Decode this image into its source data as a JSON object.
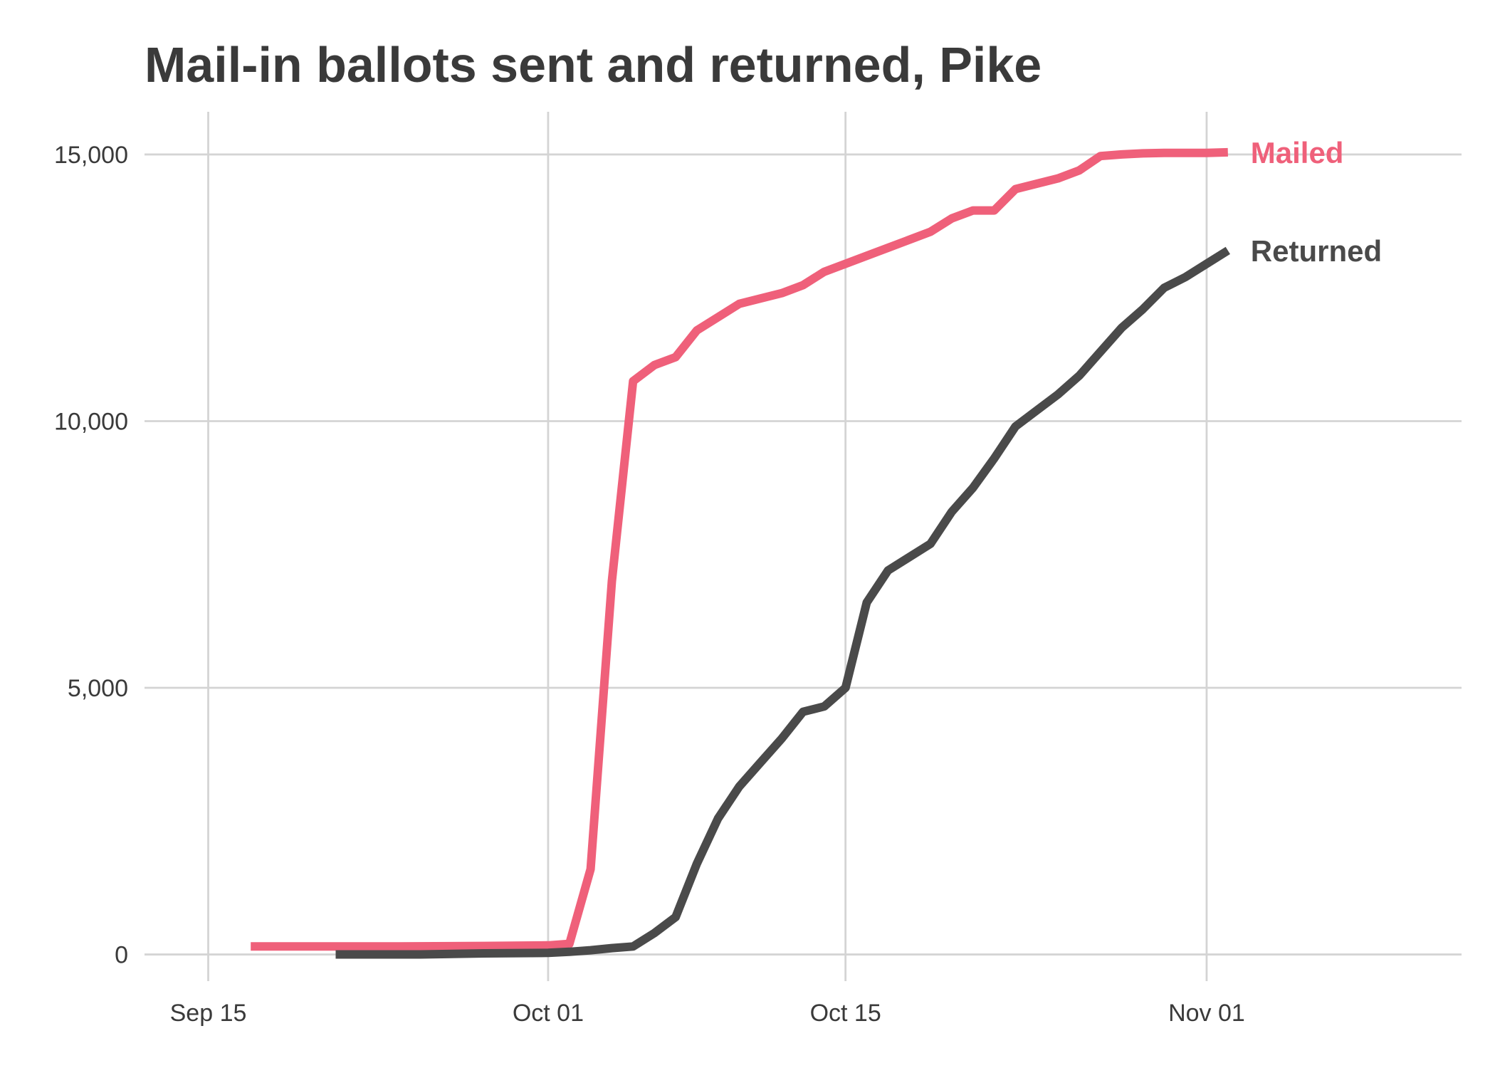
{
  "chart_data": {
    "type": "line",
    "title": "Mail-in ballots sent and returned, Pike",
    "xlabel": "",
    "ylabel": "",
    "grid": true,
    "legend": "direct-labels-right",
    "x_ticks": [
      {
        "date": "2020-09-15",
        "label": "Sep 15"
      },
      {
        "date": "2020-10-01",
        "label": "Oct 01"
      },
      {
        "date": "2020-10-15",
        "label": "Oct 15"
      },
      {
        "date": "2020-11-01",
        "label": "Nov 01"
      }
    ],
    "y_ticks": [
      {
        "value": 0,
        "label": "0"
      },
      {
        "value": 5000,
        "label": "5,000"
      },
      {
        "value": 10000,
        "label": "10,000"
      },
      {
        "value": 15000,
        "label": "15,000"
      }
    ],
    "xlim": [
      "2020-09-12",
      "2020-11-13"
    ],
    "ylim": [
      -500,
      15800
    ],
    "series": [
      {
        "name": "Mailed",
        "color": "#ef607a",
        "points": [
          [
            "2020-09-17",
            150
          ],
          [
            "2020-09-20",
            150
          ],
          [
            "2020-09-24",
            150
          ],
          [
            "2020-09-28",
            160
          ],
          [
            "2020-10-01",
            170
          ],
          [
            "2020-10-02",
            200
          ],
          [
            "2020-10-03",
            1600
          ],
          [
            "2020-10-04",
            7000
          ],
          [
            "2020-10-05",
            10750
          ],
          [
            "2020-10-06",
            11050
          ],
          [
            "2020-10-07",
            11200
          ],
          [
            "2020-10-08",
            11700
          ],
          [
            "2020-10-09",
            11950
          ],
          [
            "2020-10-10",
            12200
          ],
          [
            "2020-10-11",
            12300
          ],
          [
            "2020-10-12",
            12400
          ],
          [
            "2020-10-13",
            12550
          ],
          [
            "2020-10-14",
            12800
          ],
          [
            "2020-10-15",
            12950
          ],
          [
            "2020-10-16",
            13100
          ],
          [
            "2020-10-17",
            13250
          ],
          [
            "2020-10-18",
            13400
          ],
          [
            "2020-10-19",
            13550
          ],
          [
            "2020-10-20",
            13800
          ],
          [
            "2020-10-21",
            13950
          ],
          [
            "2020-10-22",
            13950
          ],
          [
            "2020-10-23",
            14350
          ],
          [
            "2020-10-24",
            14450
          ],
          [
            "2020-10-25",
            14550
          ],
          [
            "2020-10-26",
            14700
          ],
          [
            "2020-10-27",
            14970
          ],
          [
            "2020-10-28",
            15000
          ],
          [
            "2020-10-29",
            15020
          ],
          [
            "2020-10-30",
            15030
          ],
          [
            "2020-10-31",
            15030
          ],
          [
            "2020-11-01",
            15030
          ],
          [
            "2020-11-02",
            15040
          ]
        ]
      },
      {
        "name": "Returned",
        "color": "#4a4a4a",
        "points": [
          [
            "2020-09-21",
            0
          ],
          [
            "2020-09-25",
            0
          ],
          [
            "2020-09-28",
            20
          ],
          [
            "2020-10-01",
            30
          ],
          [
            "2020-10-02",
            50
          ],
          [
            "2020-10-03",
            80
          ],
          [
            "2020-10-04",
            120
          ],
          [
            "2020-10-05",
            150
          ],
          [
            "2020-10-06",
            400
          ],
          [
            "2020-10-07",
            700
          ],
          [
            "2020-10-08",
            1700
          ],
          [
            "2020-10-09",
            2550
          ],
          [
            "2020-10-10",
            3150
          ],
          [
            "2020-10-11",
            3600
          ],
          [
            "2020-10-12",
            4050
          ],
          [
            "2020-10-13",
            4550
          ],
          [
            "2020-10-14",
            4650
          ],
          [
            "2020-10-15",
            5000
          ],
          [
            "2020-10-16",
            6600
          ],
          [
            "2020-10-17",
            7200
          ],
          [
            "2020-10-18",
            7450
          ],
          [
            "2020-10-19",
            7700
          ],
          [
            "2020-10-20",
            8300
          ],
          [
            "2020-10-21",
            8750
          ],
          [
            "2020-10-22",
            9300
          ],
          [
            "2020-10-23",
            9900
          ],
          [
            "2020-10-24",
            10200
          ],
          [
            "2020-10-25",
            10500
          ],
          [
            "2020-10-26",
            10850
          ],
          [
            "2020-10-27",
            11300
          ],
          [
            "2020-10-28",
            11750
          ],
          [
            "2020-10-29",
            12100
          ],
          [
            "2020-10-30",
            12500
          ],
          [
            "2020-10-31",
            12700
          ],
          [
            "2020-11-01",
            12950
          ],
          [
            "2020-11-02",
            13200
          ]
        ]
      }
    ]
  }
}
